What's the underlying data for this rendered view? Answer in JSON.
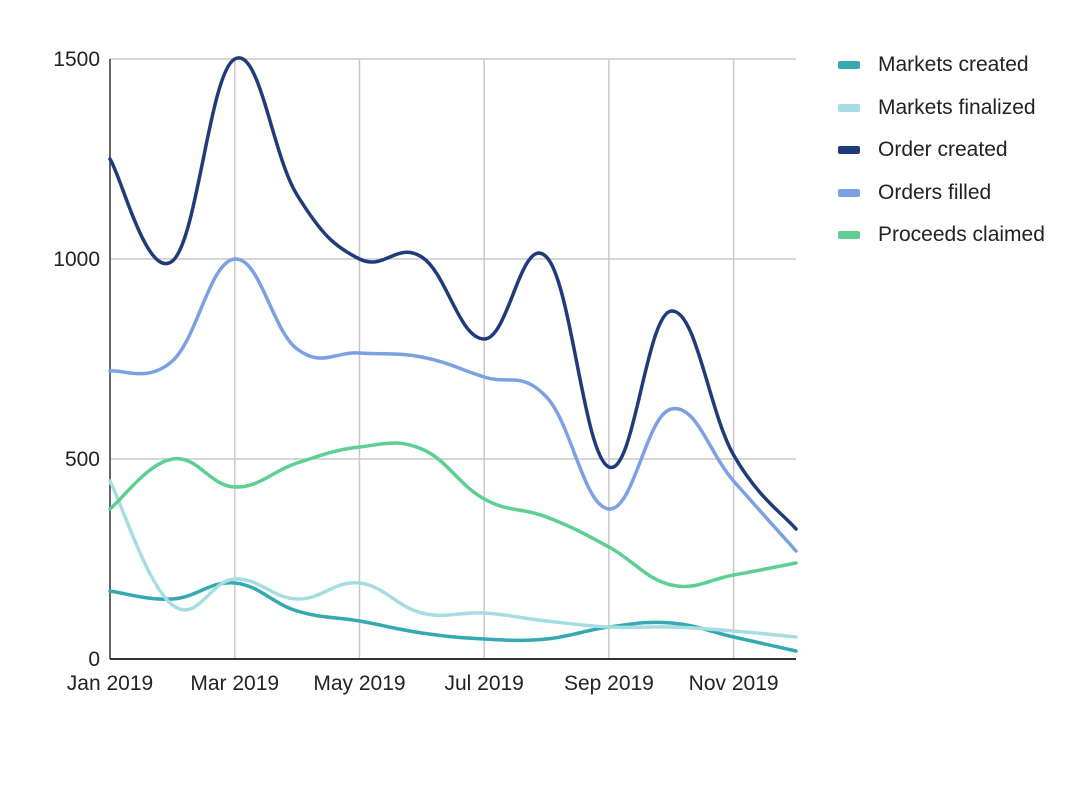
{
  "chart_data": {
    "type": "line",
    "title": "",
    "xlabel": "",
    "ylabel": "",
    "x": [
      "2019-01",
      "2019-02",
      "2019-03",
      "2019-04",
      "2019-05",
      "2019-06",
      "2019-07",
      "2019-08",
      "2019-09",
      "2019-10",
      "2019-11",
      "2019-12"
    ],
    "x_tick_labels": [
      "Jan 2019",
      "Mar 2019",
      "May 2019",
      "Jul 2019",
      "Sep 2019",
      "Nov 2019"
    ],
    "y_ticks": [
      0,
      500,
      1000,
      1500
    ],
    "ylim": [
      0,
      1500
    ],
    "grid": true,
    "legend_position": "top-right",
    "series": [
      {
        "name": "Markets created",
        "color": "#34a9b0",
        "values": [
          170,
          150,
          190,
          120,
          95,
          65,
          50,
          50,
          80,
          90,
          55,
          20
        ]
      },
      {
        "name": "Markets finalized",
        "color": "#a6dde3",
        "values": [
          445,
          135,
          200,
          150,
          190,
          115,
          115,
          95,
          80,
          80,
          70,
          55
        ]
      },
      {
        "name": "Order created",
        "color": "#1f3b7a",
        "values": [
          1250,
          995,
          1500,
          1160,
          1000,
          1005,
          800,
          1005,
          480,
          870,
          510,
          325
        ]
      },
      {
        "name": "Orders filled",
        "color": "#7ba0e3",
        "values": [
          720,
          745,
          1000,
          775,
          765,
          755,
          705,
          655,
          375,
          625,
          445,
          270
        ]
      },
      {
        "name": "Proceeds claimed",
        "color": "#5ccf91",
        "values": [
          375,
          500,
          430,
          490,
          530,
          525,
          400,
          355,
          280,
          185,
          210,
          240
        ]
      }
    ]
  }
}
